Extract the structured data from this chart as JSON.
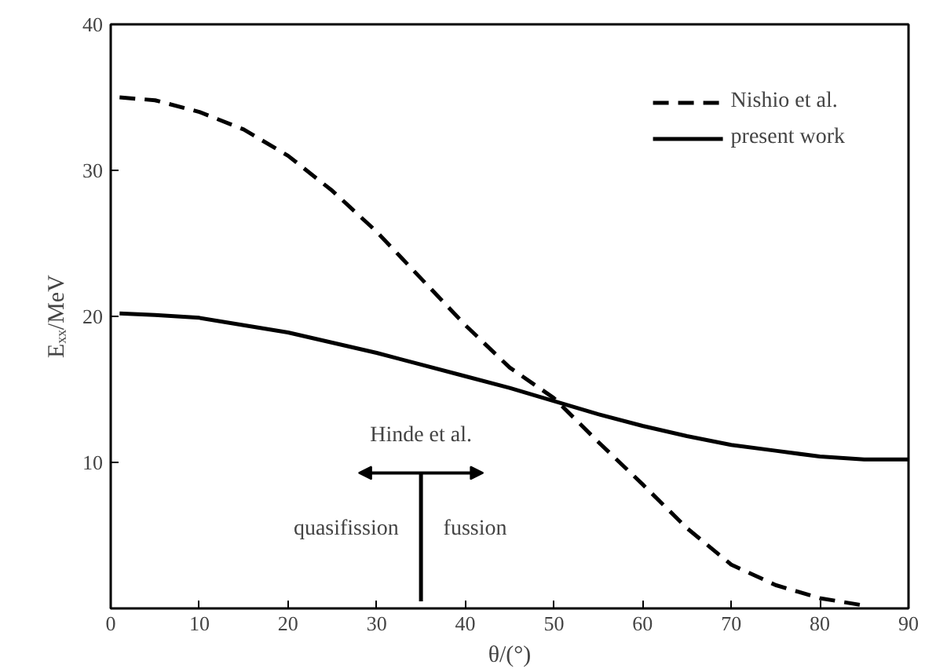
{
  "chart_data": {
    "type": "line",
    "xlabel": "θ/(°)",
    "ylabel": "Eₓₓ/MeV",
    "xlim": [
      0,
      90
    ],
    "ylim": [
      0,
      40
    ],
    "xticks": [
      0,
      10,
      20,
      30,
      40,
      50,
      60,
      70,
      80,
      90
    ],
    "yticks": [
      {
        "value": 0,
        "label": null
      },
      10,
      20,
      30,
      40
    ],
    "legend": "top right",
    "grid": false,
    "series": [
      {
        "name": "Nishio et al.",
        "color": "#000000",
        "line_style": "dashed",
        "x": [
          1,
          5,
          10,
          15,
          20,
          25,
          30,
          35,
          40,
          45,
          50,
          55,
          60,
          65,
          70,
          75,
          80,
          85
        ],
        "values": [
          35,
          34.8,
          34,
          32.8,
          31,
          28.6,
          25.8,
          22.6,
          19.4,
          16.5,
          14.4,
          11.4,
          8.5,
          5.5,
          3,
          1.6,
          0.7,
          0.2
        ]
      },
      {
        "name": "present work",
        "color": "#000000",
        "line_style": "solid",
        "x": [
          1,
          5,
          10,
          15,
          20,
          25,
          30,
          35,
          40,
          45,
          50,
          55,
          60,
          65,
          70,
          75,
          80,
          85,
          90
        ],
        "values": [
          20.2,
          20.1,
          19.9,
          19.4,
          18.9,
          18.2,
          17.5,
          16.7,
          15.9,
          15.1,
          14.2,
          13.3,
          12.5,
          11.8,
          11.2,
          10.8,
          10.4,
          10.2,
          10.2
        ]
      }
    ],
    "ref_lines": [
      {
        "axis": "x",
        "value": 35,
        "label": "Hinde et al.",
        "color": "#000000",
        "line_style": "solid"
      }
    ],
    "annotations": [
      "quasifission",
      "fussion"
    ]
  }
}
